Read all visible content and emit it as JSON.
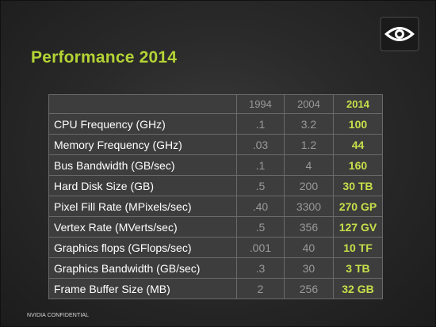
{
  "slide": {
    "title": "Performance 2014",
    "footer": "NVIDIA CONFIDENTIAL",
    "accent_color": "#b4d435",
    "logo_icon": "nvidia-eye-icon"
  },
  "table": {
    "headers": [
      "",
      "1994",
      "2004",
      "2014"
    ],
    "rows": [
      {
        "label": "CPU Frequency (GHz)",
        "v1994": ".1",
        "v2004": "3.2",
        "v2014": "100"
      },
      {
        "label": "Memory Frequency (GHz)",
        "v1994": ".03",
        "v2004": "1.2",
        "v2014": "44"
      },
      {
        "label": "Bus Bandwidth (GB/sec)",
        "v1994": ".1",
        "v2004": "4",
        "v2014": "160"
      },
      {
        "label": "Hard Disk Size (GB)",
        "v1994": ".5",
        "v2004": "200",
        "v2014": "30 TB"
      },
      {
        "label": "Pixel Fill Rate (MPixels/sec)",
        "v1994": ".40",
        "v2004": "3300",
        "v2014": "270 GP"
      },
      {
        "label": "Vertex Rate (MVerts/sec)",
        "v1994": ".5",
        "v2004": "356",
        "v2014": "127 GV"
      },
      {
        "label": "Graphics flops (GFlops/sec)",
        "v1994": ".001",
        "v2004": "40",
        "v2014": "10 TF"
      },
      {
        "label": "Graphics Bandwidth (GB/sec)",
        "v1994": ".3",
        "v2004": "30",
        "v2014": "3 TB"
      },
      {
        "label": "Frame Buffer Size (MB)",
        "v1994": "2",
        "v2004": "256",
        "v2014": "32 GB"
      }
    ]
  }
}
